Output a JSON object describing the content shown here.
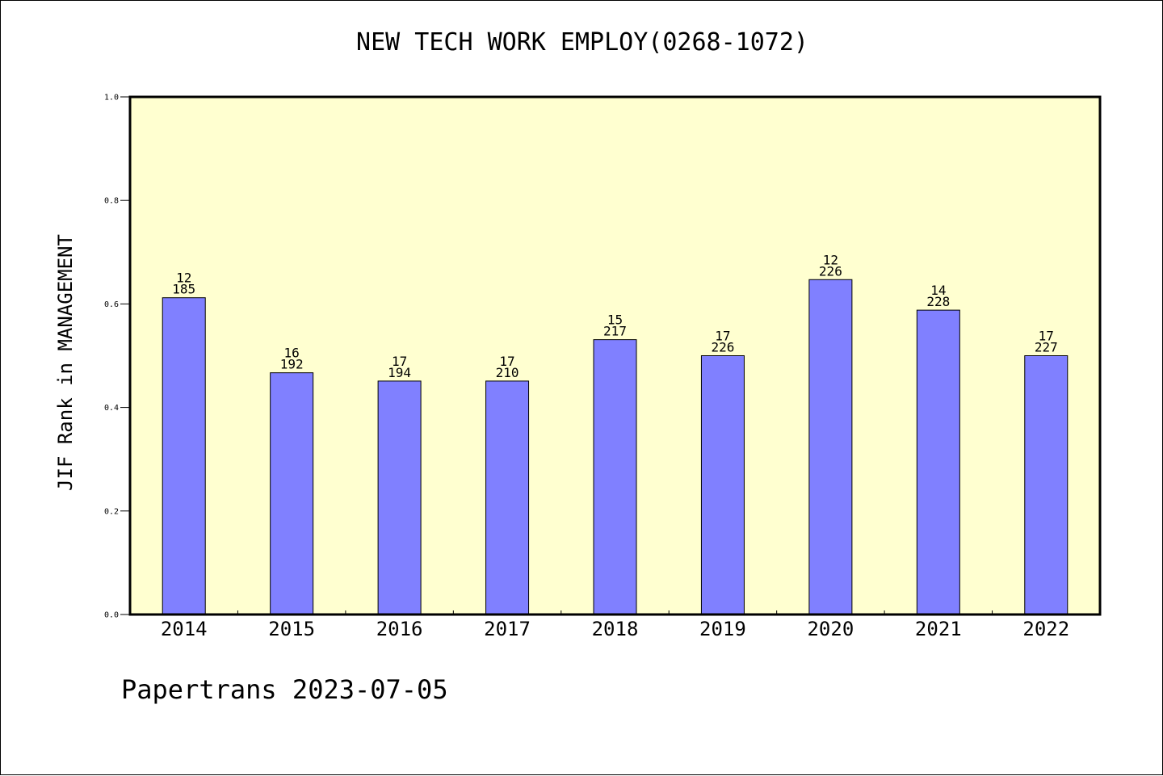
{
  "chart_data": {
    "type": "bar",
    "title": "NEW TECH WORK EMPLOY(0268-1072)",
    "xlabel": "",
    "ylabel": "JIF Rank in MANAGEMENT",
    "ylim": [
      0,
      1.0
    ],
    "yticks": [
      "0.0",
      "0.2",
      "0.4",
      "0.6",
      "0.8",
      "1.0"
    ],
    "categories": [
      "2014",
      "2015",
      "2016",
      "2017",
      "2018",
      "2019",
      "2020",
      "2021",
      "2022"
    ],
    "values": [
      0.612,
      0.467,
      0.451,
      0.451,
      0.531,
      0.5,
      0.647,
      0.588,
      0.5
    ],
    "rank_labels": [
      "12",
      "16",
      "17",
      "17",
      "15",
      "17",
      "12",
      "14",
      "17"
    ],
    "total_labels": [
      "185",
      "192",
      "194",
      "210",
      "217",
      "226",
      "226",
      "228",
      "227"
    ],
    "grid": false,
    "legend": "none",
    "colors": {
      "bar": "#8080ff",
      "plot_background": "#ffffd0"
    }
  },
  "footer": {
    "text": "Papertrans 2023-07-05"
  }
}
